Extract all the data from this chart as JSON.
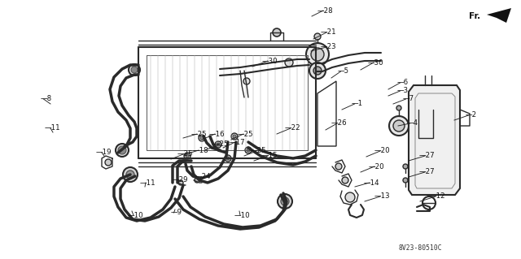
{
  "bg_color": "#f5f5f5",
  "line_color": "#333333",
  "diagram_code": "8V23-80510C",
  "fig_width": 6.4,
  "fig_height": 3.19,
  "dpi": 100,
  "labels": [
    [
      "28",
      390,
      22,
      380,
      32
    ],
    [
      "21",
      393,
      48,
      378,
      55
    ],
    [
      "23",
      393,
      65,
      375,
      68
    ],
    [
      "30",
      330,
      82,
      318,
      88
    ],
    [
      "5",
      415,
      95,
      405,
      105
    ],
    [
      "30",
      450,
      82,
      440,
      92
    ],
    [
      "6",
      488,
      108,
      476,
      113
    ],
    [
      "1",
      432,
      135,
      418,
      138
    ],
    [
      "7",
      495,
      128,
      482,
      132
    ],
    [
      "3",
      490,
      118,
      478,
      122
    ],
    [
      "2",
      570,
      148,
      555,
      148
    ],
    [
      "4",
      500,
      158,
      488,
      158
    ],
    [
      "26",
      407,
      158,
      400,
      165
    ],
    [
      "27",
      515,
      198,
      502,
      202
    ],
    [
      "20",
      460,
      192,
      448,
      196
    ],
    [
      "27",
      515,
      218,
      502,
      222
    ],
    [
      "20",
      453,
      210,
      442,
      215
    ],
    [
      "14",
      445,
      228,
      434,
      232
    ],
    [
      "13",
      458,
      248,
      446,
      252
    ],
    [
      "12",
      525,
      248,
      512,
      252
    ],
    [
      "22",
      348,
      165,
      338,
      172
    ],
    [
      "15",
      320,
      198,
      310,
      205
    ],
    [
      "17",
      280,
      182,
      272,
      188
    ],
    [
      "18",
      235,
      190,
      228,
      196
    ],
    [
      "16",
      255,
      172,
      248,
      178
    ],
    [
      "25",
      232,
      172,
      224,
      178
    ],
    [
      "25",
      260,
      185,
      252,
      190
    ],
    [
      "25",
      290,
      172,
      282,
      178
    ],
    [
      "25",
      305,
      192,
      298,
      198
    ],
    [
      "25",
      215,
      195,
      208,
      200
    ],
    [
      "19",
      122,
      188,
      132,
      192
    ],
    [
      "29",
      215,
      218,
      220,
      225
    ],
    [
      "24",
      240,
      218,
      245,
      225
    ],
    [
      "11",
      60,
      162,
      68,
      168
    ],
    [
      "11",
      175,
      228,
      180,
      235
    ],
    [
      "9",
      212,
      268,
      218,
      262
    ],
    [
      "10",
      160,
      272,
      165,
      265
    ],
    [
      "10",
      290,
      272,
      295,
      265
    ],
    [
      "8",
      55,
      128,
      65,
      132
    ]
  ]
}
